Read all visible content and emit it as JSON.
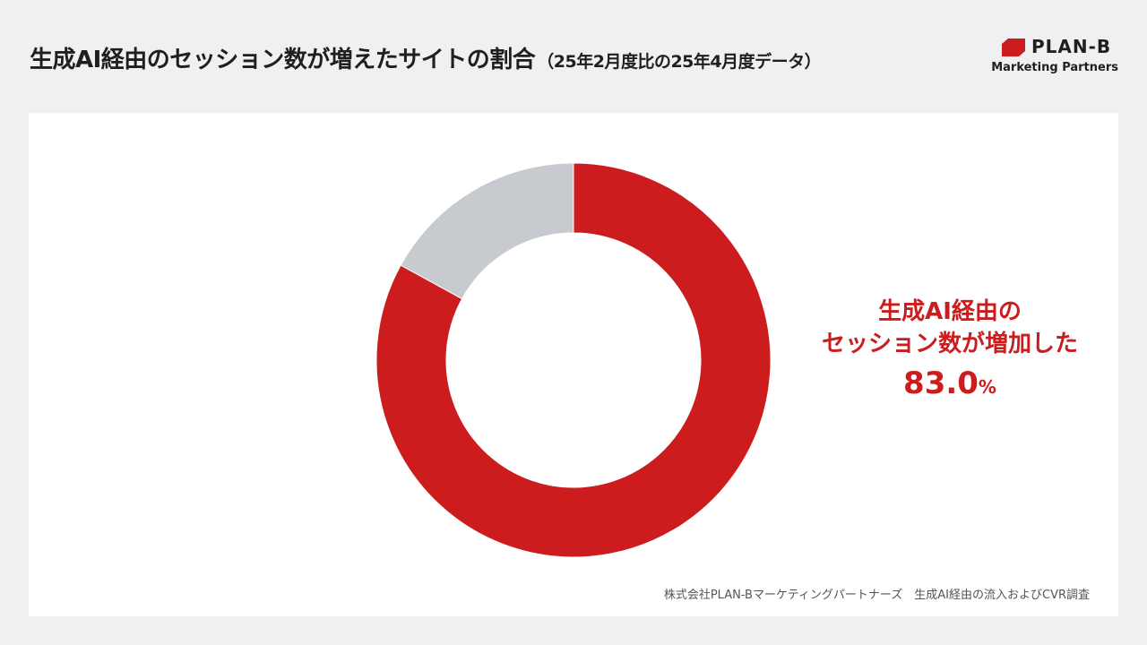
{
  "title": {
    "main": "生成AI経由のセッション数が増えたサイトの割合",
    "sub": "（25年2月度比の25年4月度データ）"
  },
  "logo": {
    "brand": "PLAN-B",
    "tagline": "Marketing Partners",
    "mark_color": "#cc1c1e"
  },
  "callout": {
    "line1": "生成AI経由の",
    "line2": "セッション数が増加した",
    "value": "83.0",
    "unit": "%"
  },
  "source": "株式会社PLAN-Bマーケティングパートナーズ　生成AI経由の流入およびCVR調査",
  "colors": {
    "accent": "#cc1c1e",
    "other": "#c7cacf"
  },
  "chart_data": {
    "type": "pie",
    "variant": "donut",
    "slices": [
      {
        "label": "生成AI経由のセッション数が増加した",
        "value": 83.0,
        "color": "#cc1c1e"
      },
      {
        "label": "",
        "value": 17.0,
        "color": "#c7cacf"
      }
    ],
    "title": "生成AI経由のセッション数が増えたサイトの割合（25年2月度比の25年4月度データ）",
    "legend": "none"
  }
}
